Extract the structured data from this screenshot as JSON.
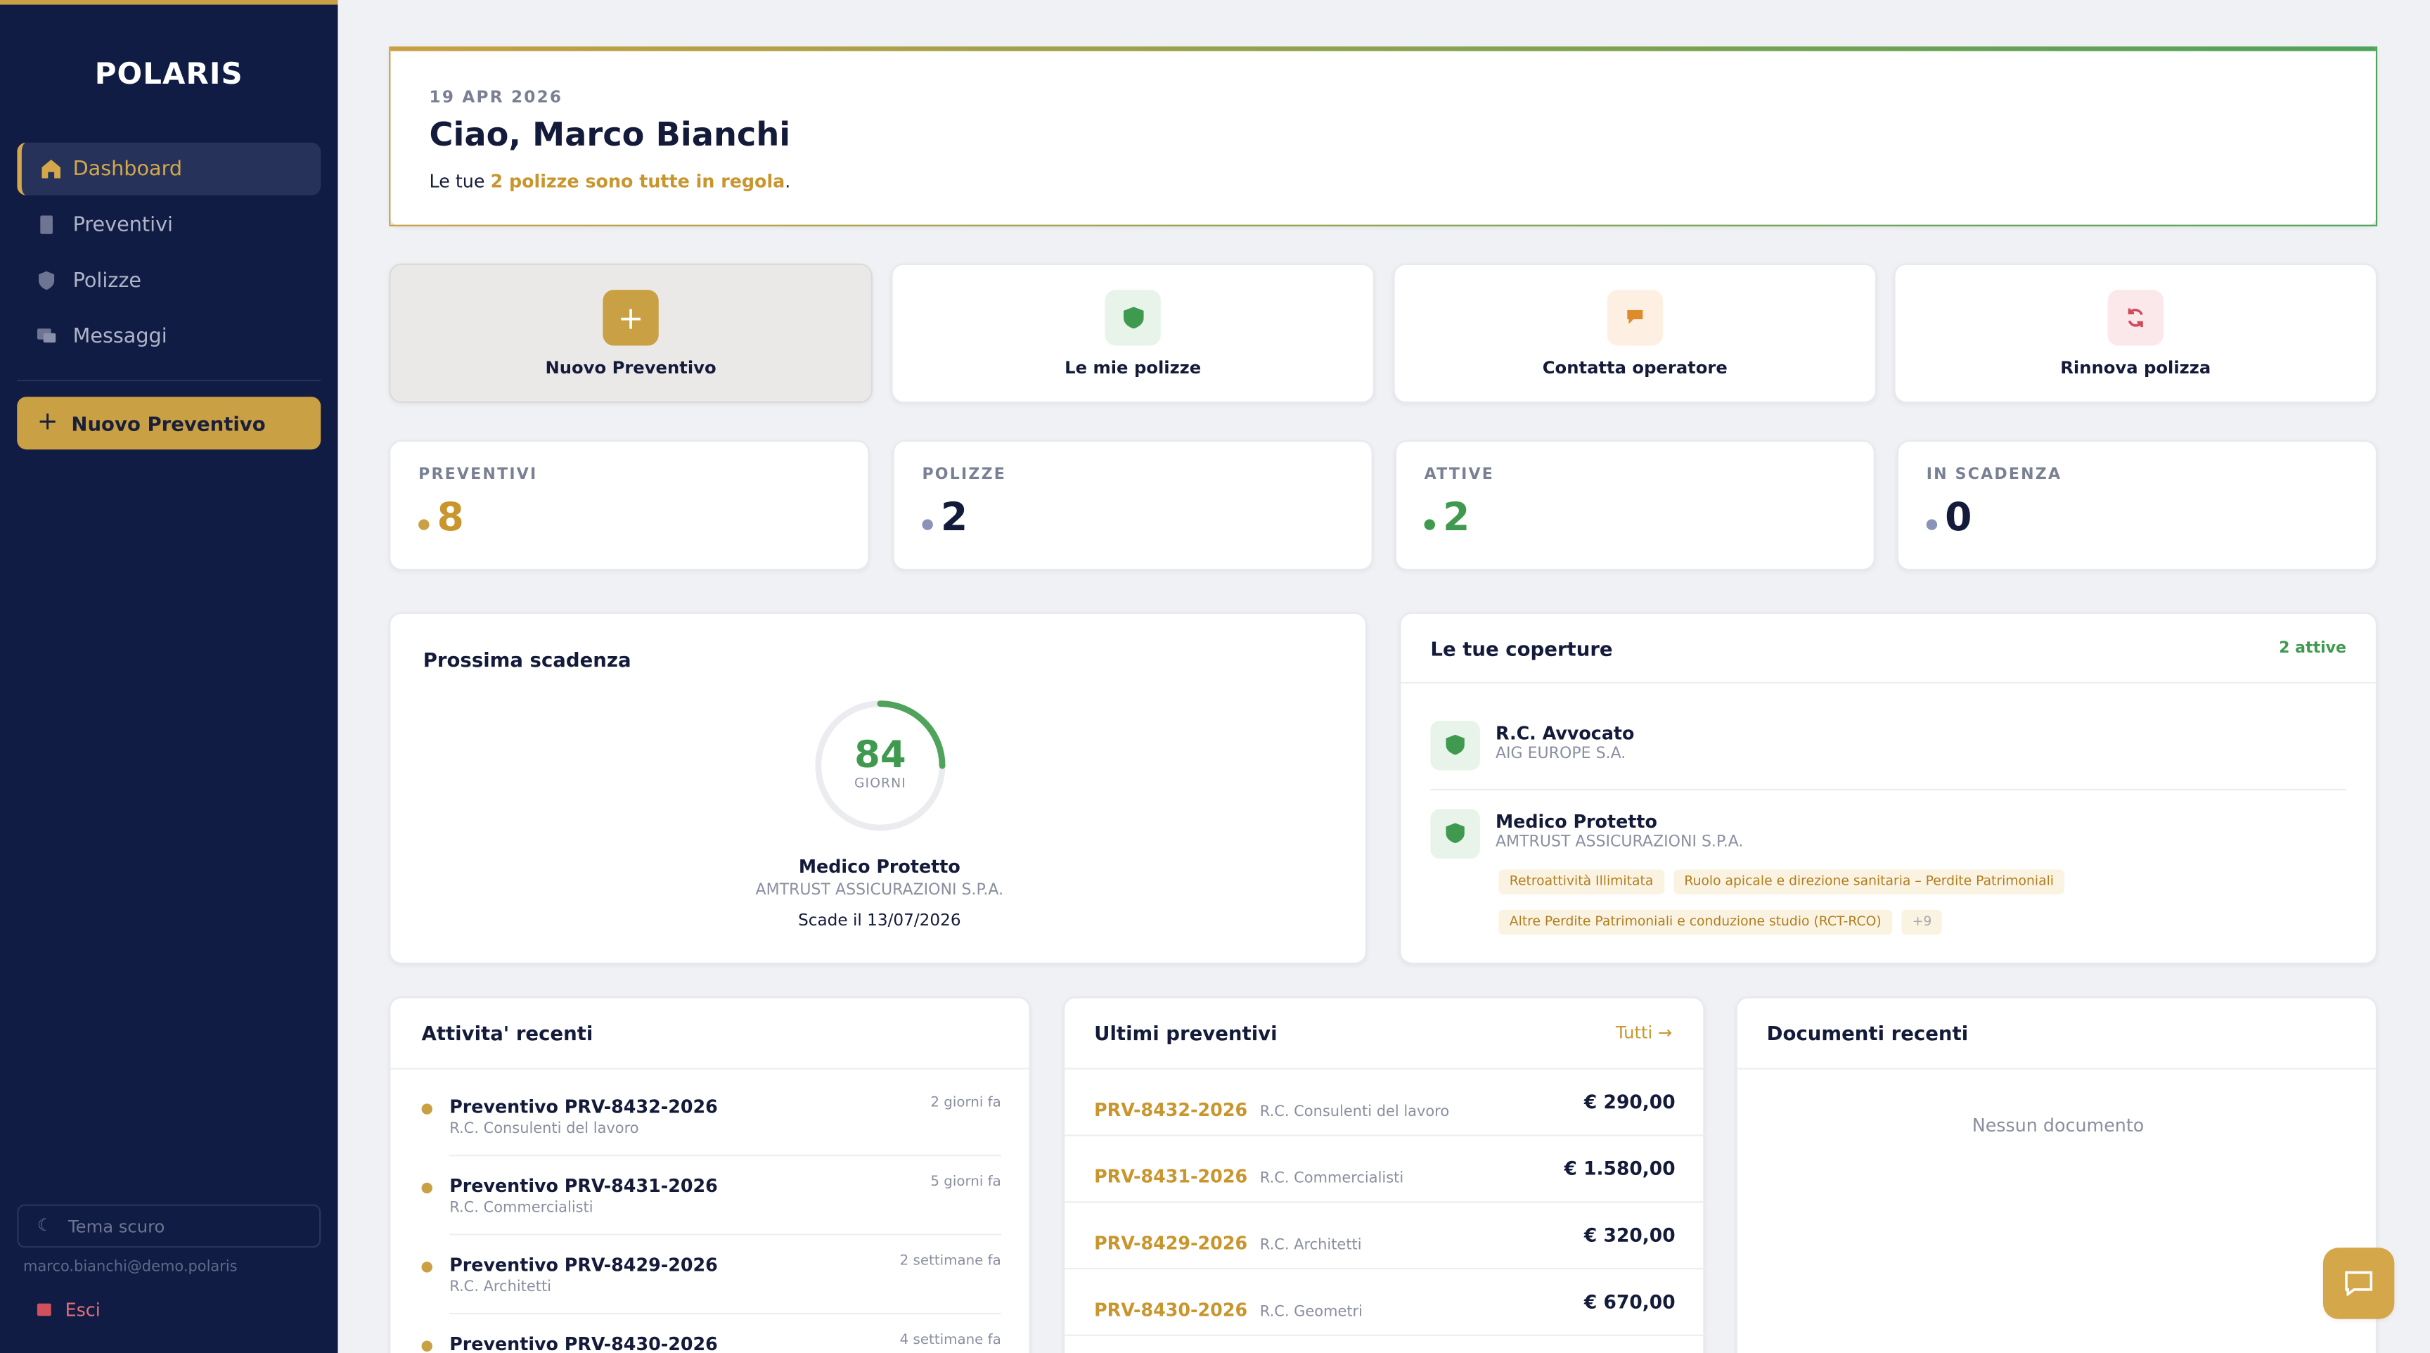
{
  "sidebar": {
    "logo": "POLARIS",
    "nav": [
      "Dashboard",
      "Preventivi",
      "Polizze",
      "Messaggi"
    ],
    "cta": "Nuovo Preventivo",
    "theme": "Tema scuro",
    "email": "marco.bianchi@demo.polaris",
    "logout": "Esci"
  },
  "header": {
    "date": "19 APR 2026",
    "greeting": "Ciao, Marco Bianchi",
    "summary_prefix": "Le tue",
    "summary_highlight": "2 polizze sono tutte in regola",
    "summary_suffix": "."
  },
  "actions": [
    "Nuovo Preventivo",
    "Le mie polizze",
    "Contatta operatore",
    "Rinnova polizza"
  ],
  "stats": [
    {
      "label": "PREVENTIVI",
      "value": 8
    },
    {
      "label": "POLIZZE",
      "value": 2
    },
    {
      "label": "ATTIVE",
      "value": 2
    },
    {
      "label": "IN SCADENZA",
      "value": 0
    }
  ],
  "next_expiry": {
    "title": "Prossima scadenza",
    "days": 84,
    "unit": "GIORNI",
    "policy": "Medico Protetto",
    "insurer": "AMTRUST ASSICURAZIONI S.P.A.",
    "expires": "Scade il 13/07/2026"
  },
  "coverages": {
    "title": "Le tue coperture",
    "count_label": "2 attive",
    "items": [
      {
        "name": "R.C. Avvocato",
        "insurer": "AIG EUROPE S.A."
      },
      {
        "name": "Medico Protetto",
        "insurer": "AMTRUST ASSICURAZIONI S.P.A.",
        "tags": [
          "Retroattività Illimitata",
          "Ruolo apicale e direzione sanitaria – Perdite Patrimoniali",
          "Altre Perdite Patrimoniali e conduzione studio (RCT-RCO)",
          "+9"
        ]
      }
    ]
  },
  "activity": {
    "title": "Attivita' recenti",
    "items": [
      {
        "title": "Preventivo PRV-8432-2026",
        "subtitle": "R.C. Consulenti del lavoro",
        "time": "2 giorni fa"
      },
      {
        "title": "Preventivo PRV-8431-2026",
        "subtitle": "R.C. Commercialisti",
        "time": "5 giorni fa"
      },
      {
        "title": "Preventivo PRV-8429-2026",
        "subtitle": "R.C. Architetti",
        "time": "2 settimane fa"
      },
      {
        "title": "Preventivo PRV-8430-2026",
        "time": "4 settimane fa"
      }
    ]
  },
  "quotes": {
    "title": "Ultimi preventivi",
    "link": "Tutti →",
    "items": [
      {
        "code": "PRV-8432-2026",
        "product": "R.C. Consulenti del lavoro",
        "amount": "€ 290,00"
      },
      {
        "code": "PRV-8431-2026",
        "product": "R.C. Commercialisti",
        "amount": "€ 1.580,00"
      },
      {
        "code": "PRV-8429-2026",
        "product": "R.C. Architetti",
        "amount": "€ 320,00"
      },
      {
        "code": "PRV-8430-2026",
        "product": "R.C. Geometri",
        "amount": "€ 670,00"
      }
    ]
  },
  "documents": {
    "title": "Documenti recenti",
    "empty": "Nessun documento"
  }
}
